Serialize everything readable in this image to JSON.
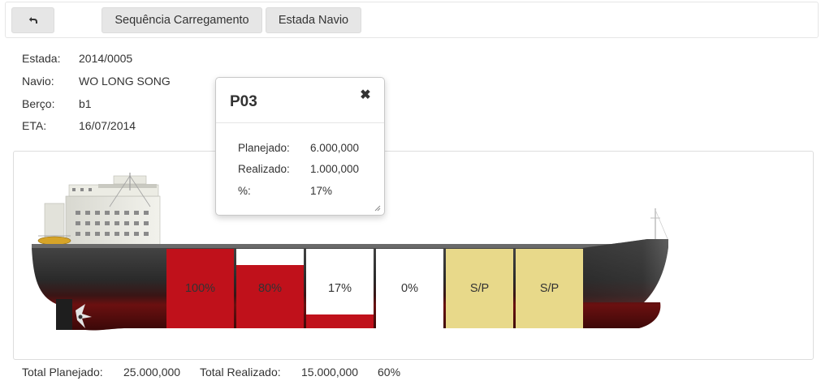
{
  "toolbar": {
    "back_icon": "undo-arrow-icon",
    "sequence_label": "Sequência Carregamento",
    "voyage_label": "Estada Navio"
  },
  "info": {
    "estada_label": "Estada:",
    "estada_value": "2014/0005",
    "navio_label": "Navio:",
    "navio_value": "WO LONG SONG",
    "berco_label": "Berço:",
    "berco_value": "b1",
    "eta_label": "ETA:",
    "eta_value": "16/07/2014"
  },
  "holds": [
    {
      "label": "100%",
      "fill": 1.0,
      "status": "partial"
    },
    {
      "label": "80%",
      "fill": 0.8,
      "status": "partial"
    },
    {
      "label": "17%",
      "fill": 0.17,
      "status": "partial"
    },
    {
      "label": "0%",
      "fill": 0.0,
      "status": "partial"
    },
    {
      "label": "S/P",
      "fill": 0.0,
      "status": "sem-plano"
    },
    {
      "label": "S/P",
      "fill": 0.0,
      "status": "sem-plano"
    }
  ],
  "colors": {
    "fill_red": "#c0111b",
    "sem_plano": "#e8d98a",
    "hull_dark": "#2b2b2b",
    "hull_red": "#5e1010"
  },
  "popover": {
    "title": "P03",
    "close_icon": "close-x-icon",
    "planejado_label": "Planejado:",
    "planejado_value": "6.000,000",
    "realizado_label": "Realizado:",
    "realizado_value": "1.000,000",
    "pct_label": "%:",
    "pct_value": "17%"
  },
  "totals": {
    "planejado_label": "Total Planejado:",
    "planejado_value": "25.000,000",
    "realizado_label": "Total Realizado:",
    "realizado_value": "15.000,000",
    "pct_value": "60%"
  }
}
